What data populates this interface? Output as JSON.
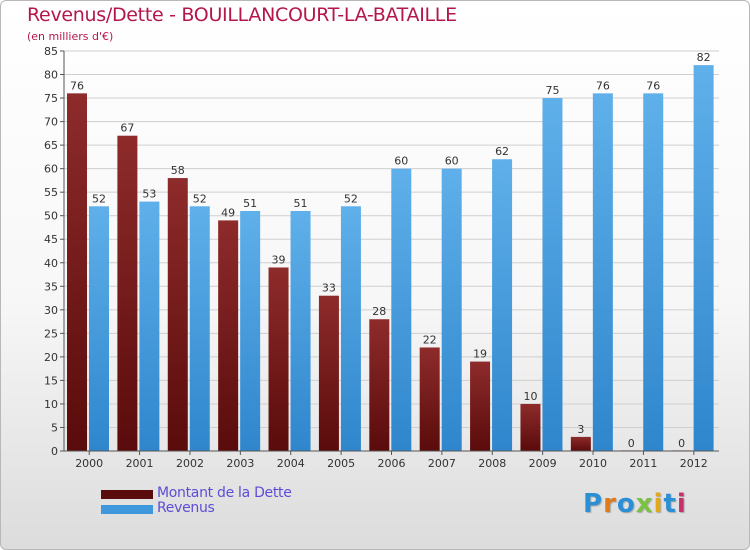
{
  "header": {
    "title": "Revenus/Dette - BOUILLANCOURT-LA-BATAILLE",
    "subtitle": "(en milliers d'€)"
  },
  "colors": {
    "title": "#b5174a",
    "dette": "#7a1b1b",
    "revenus": "#3f98dc",
    "legend_text": "#5c4dd6"
  },
  "logo": {
    "text": "Proxiti",
    "letter_colors": [
      "#2b8fd6",
      "#e07b1a",
      "#2b8fd6",
      "#7cc242",
      "#e0a81a",
      "#2b8fd6",
      "#c7306e"
    ]
  },
  "chart_data": {
    "type": "bar",
    "title": "Revenus/Dette - BOUILLANCOURT-LA-BATAILLE",
    "subtitle": "(en milliers d'€)",
    "xlabel": "",
    "ylabel": "",
    "categories": [
      "2000",
      "2001",
      "2002",
      "2003",
      "2004",
      "2005",
      "2006",
      "2007",
      "2008",
      "2009",
      "2010",
      "2011",
      "2012"
    ],
    "series": [
      {
        "name": "Montant de la Dette",
        "color": "#7a1b1b",
        "values": [
          76,
          67,
          58,
          49,
          39,
          33,
          28,
          22,
          19,
          10,
          3,
          0,
          0
        ]
      },
      {
        "name": "Revenus",
        "color": "#3f98dc",
        "values": [
          52,
          53,
          52,
          51,
          51,
          52,
          60,
          60,
          62,
          75,
          76,
          76,
          82
        ]
      }
    ],
    "ylim": [
      0,
      85
    ],
    "yticks": [
      0,
      5,
      10,
      15,
      20,
      25,
      30,
      35,
      40,
      45,
      50,
      55,
      60,
      65,
      70,
      75,
      80,
      85
    ],
    "grid": true,
    "legend_position": "bottom-left"
  }
}
